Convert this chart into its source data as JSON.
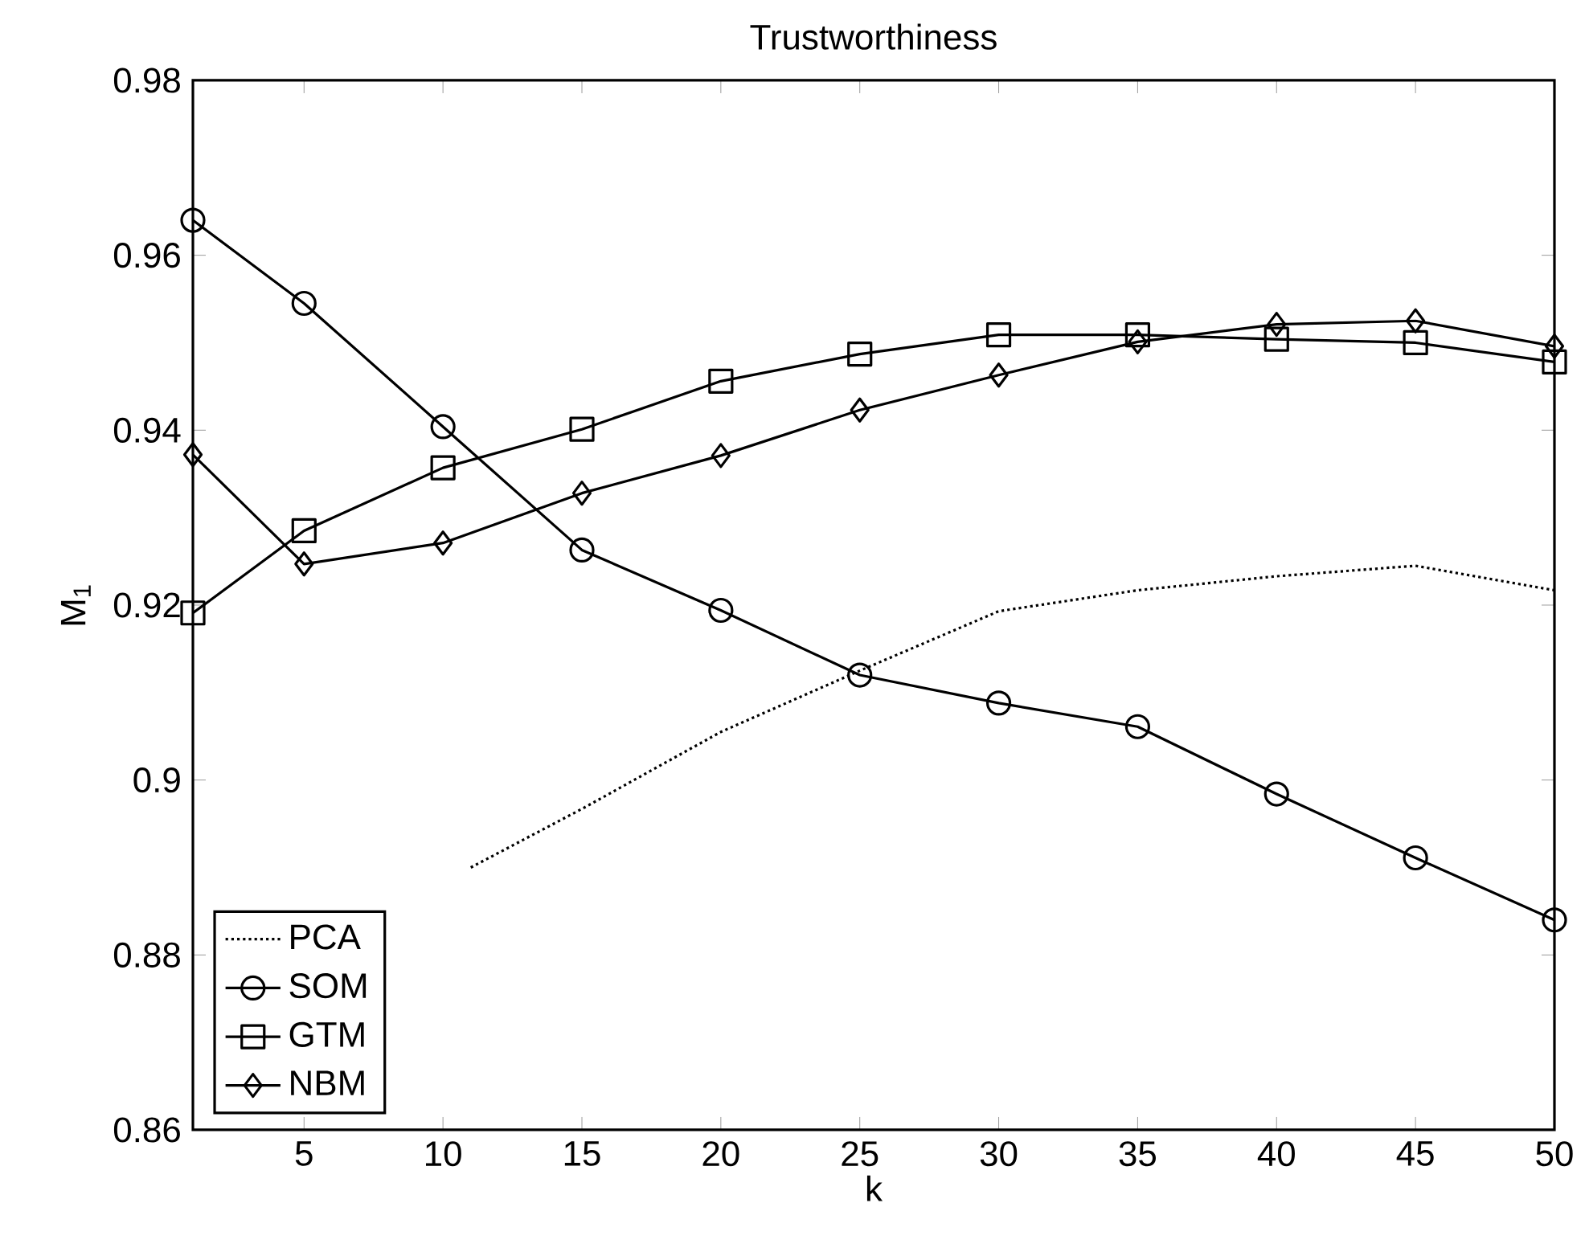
{
  "chart_data": {
    "type": "line",
    "title": "Trustworthiness",
    "xlabel": "k",
    "ylabel": "M$_{1}$",
    "x": [
      1,
      5,
      10,
      15,
      20,
      25,
      30,
      35,
      40,
      45,
      50
    ],
    "series": [
      {
        "name": "PCA",
        "color": "#000000",
        "marker": "none",
        "line_style": "dotted",
        "x": [
          11,
          15,
          20,
          25,
          30,
          35,
          40,
          45,
          50
        ],
        "values": [
          0.89,
          0.8967,
          0.9055,
          0.9125,
          0.9193,
          0.9217,
          0.9233,
          0.9245,
          0.9217
        ]
      },
      {
        "name": "SOM",
        "color": "#000000",
        "marker": "circle",
        "line_style": "solid",
        "values": [
          0.964,
          0.9545,
          0.9404,
          0.9263,
          0.9194,
          0.912,
          0.9088,
          0.9061,
          0.8984,
          0.8911,
          0.884
        ]
      },
      {
        "name": "GTM",
        "color": "#000000",
        "marker": "square",
        "line_style": "solid",
        "values": [
          0.9191,
          0.9285,
          0.9357,
          0.9401,
          0.9456,
          0.9487,
          0.9509,
          0.9509,
          0.9504,
          0.95,
          0.9478
        ]
      },
      {
        "name": "NBM",
        "color": "#000000",
        "marker": "diamond",
        "line_style": "solid",
        "values": [
          0.9372,
          0.9247,
          0.9271,
          0.9328,
          0.9371,
          0.9423,
          0.9463,
          0.9501,
          0.9521,
          0.9525,
          0.9496
        ]
      }
    ],
    "xlim": [
      1,
      50
    ],
    "xticks": [
      5,
      10,
      15,
      20,
      25,
      30,
      35,
      40,
      45,
      50
    ],
    "ylim": [
      0.86,
      0.98
    ],
    "yticks": [
      0.86,
      0.88,
      {
        "value": 0.9,
        "label": "0.9"
      },
      0.92,
      0.94,
      0.96,
      0.98
    ],
    "grid": false,
    "legend": "bottom left"
  }
}
